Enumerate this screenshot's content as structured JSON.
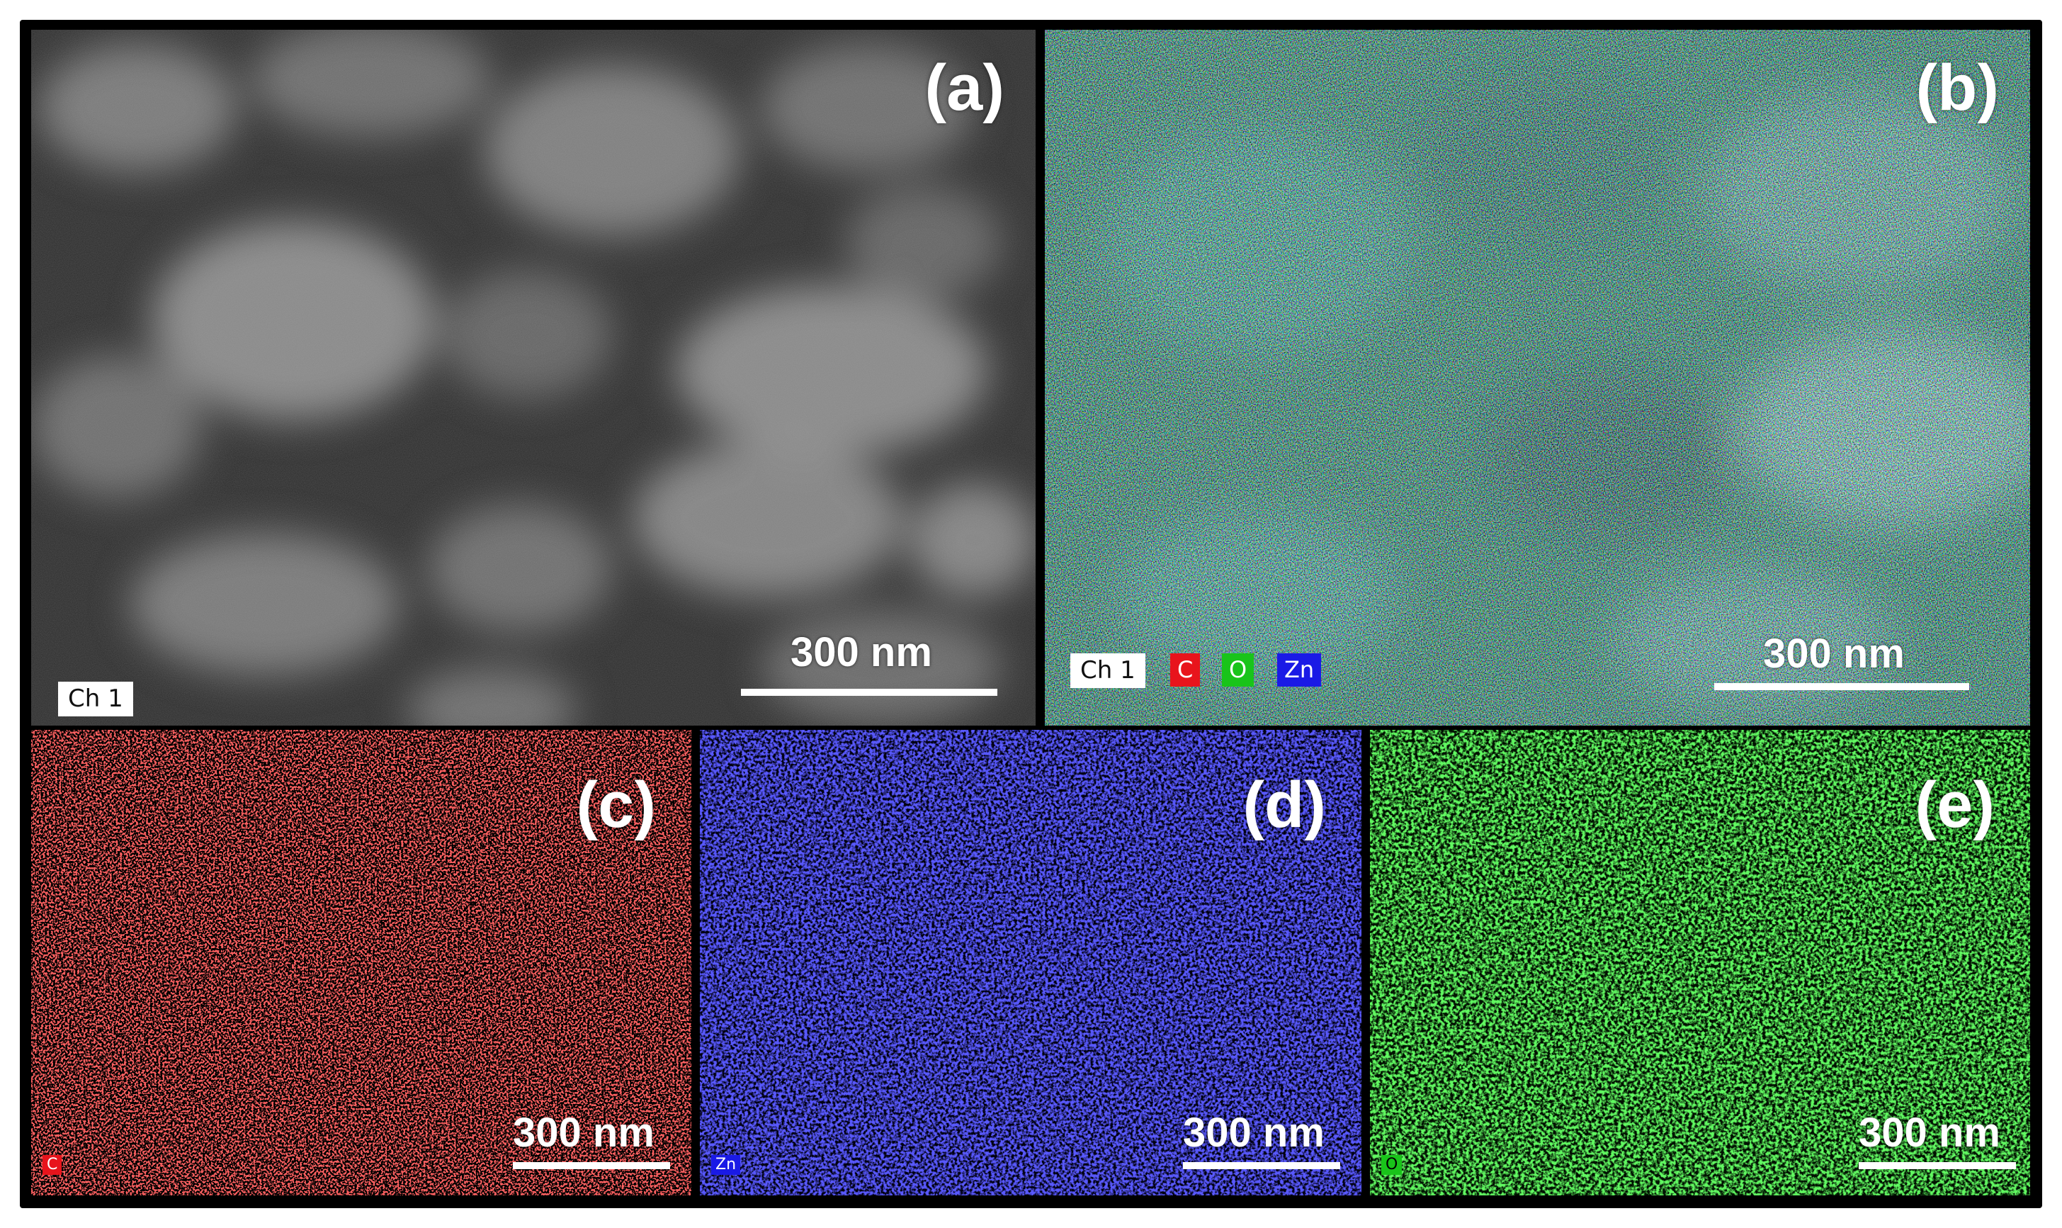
{
  "panels": {
    "a": {
      "letter": "(a)",
      "scale": "300 nm",
      "channel": "Ch 1"
    },
    "b": {
      "letter": "(b)",
      "scale": "300 nm",
      "channel": "Ch 1",
      "legend": [
        {
          "label": "C",
          "color": "#e8141c"
        },
        {
          "label": "O",
          "color": "#19c41a"
        },
        {
          "label": "Zn",
          "color": "#1a1ae6"
        }
      ]
    },
    "c": {
      "letter": "(c)",
      "scale": "300 nm",
      "element": "C",
      "color": "#ff2020"
    },
    "d": {
      "letter": "(d)",
      "scale": "300 nm",
      "element": "Zn",
      "color": "#2020ff"
    },
    "e": {
      "letter": "(e)",
      "scale": "300 nm",
      "element": "O",
      "color": "#20e020"
    }
  }
}
